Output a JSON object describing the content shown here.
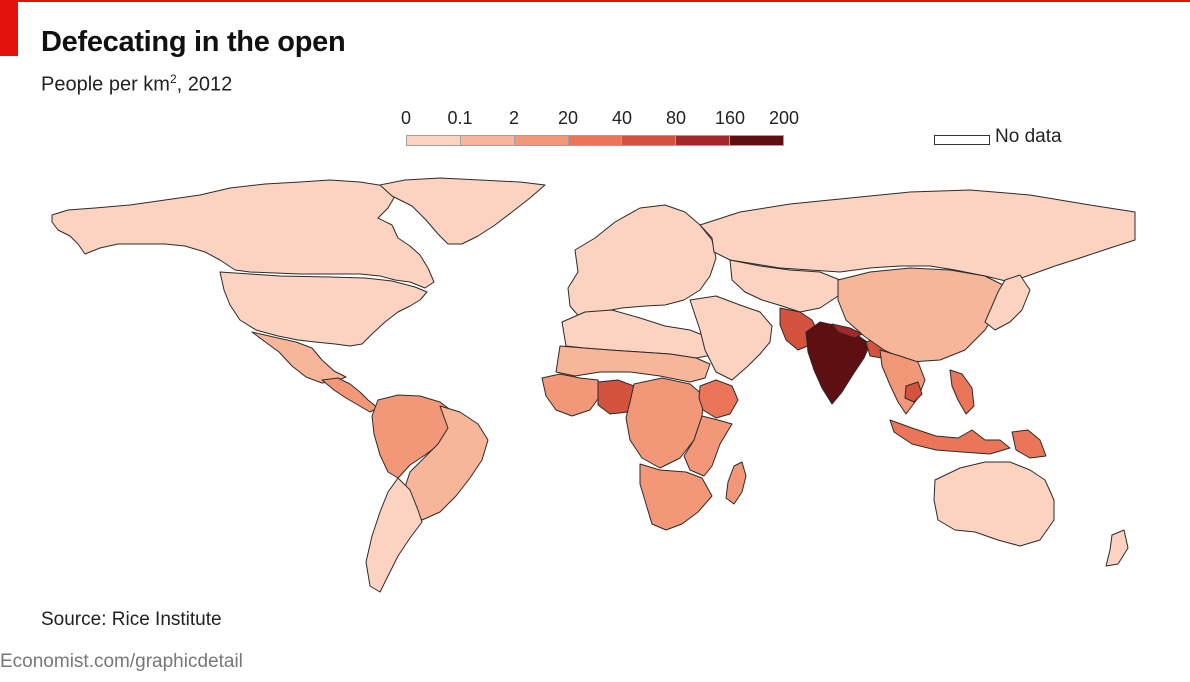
{
  "header": {
    "title": "Defecating in the open",
    "subtitle_prefix": "People per km",
    "subtitle_sup": "2",
    "subtitle_suffix": ", 2012"
  },
  "legend": {
    "ticks": [
      "0",
      "0.1",
      "2",
      "20",
      "40",
      "80",
      "160",
      "200"
    ],
    "colors": [
      "#fbd3c0",
      "#f7b599",
      "#f29778",
      "#eb7558",
      "#d3533f",
      "#a6272a",
      "#5e0f12"
    ],
    "border_color": "#a0a0a0",
    "no_data_label": "No data"
  },
  "map": {
    "outline_color": "#2b2b2b",
    "regions": [
      {
        "name": "canada-alaska",
        "class": 0
      },
      {
        "name": "greenland",
        "class": 0
      },
      {
        "name": "united-states",
        "class": 0
      },
      {
        "name": "mexico",
        "class": 1
      },
      {
        "name": "central-america",
        "class": 2
      },
      {
        "name": "south-america-north",
        "class": 2
      },
      {
        "name": "brazil",
        "class": 1
      },
      {
        "name": "southern-cone",
        "class": 0
      },
      {
        "name": "europe",
        "class": 0
      },
      {
        "name": "russia",
        "class": 0
      },
      {
        "name": "north-africa",
        "class": 0
      },
      {
        "name": "sahel",
        "class": 1
      },
      {
        "name": "west-africa",
        "class": 2
      },
      {
        "name": "nigeria",
        "class": 4
      },
      {
        "name": "central-africa",
        "class": 2
      },
      {
        "name": "east-africa",
        "class": 2
      },
      {
        "name": "ethiopia",
        "class": 3
      },
      {
        "name": "southern-africa",
        "class": 2
      },
      {
        "name": "madagascar",
        "class": 2
      },
      {
        "name": "middle-east",
        "class": 0
      },
      {
        "name": "central-asia",
        "class": 0
      },
      {
        "name": "pakistan",
        "class": 4
      },
      {
        "name": "india",
        "class": 6
      },
      {
        "name": "nepal",
        "class": 5
      },
      {
        "name": "bangladesh",
        "class": 4
      },
      {
        "name": "china-mongolia",
        "class": 1
      },
      {
        "name": "southeast-asia",
        "class": 2
      },
      {
        "name": "cambodia",
        "class": 4
      },
      {
        "name": "japan-korea",
        "class": 0
      },
      {
        "name": "philippines",
        "class": 3
      },
      {
        "name": "indonesia",
        "class": 3
      },
      {
        "name": "papua-new-guinea",
        "class": 3
      },
      {
        "name": "australia",
        "class": 0
      },
      {
        "name": "new-zealand",
        "class": 0
      }
    ]
  },
  "footer": {
    "source": "Source: Rice Institute",
    "url": "Economist.com/graphicdetail"
  }
}
